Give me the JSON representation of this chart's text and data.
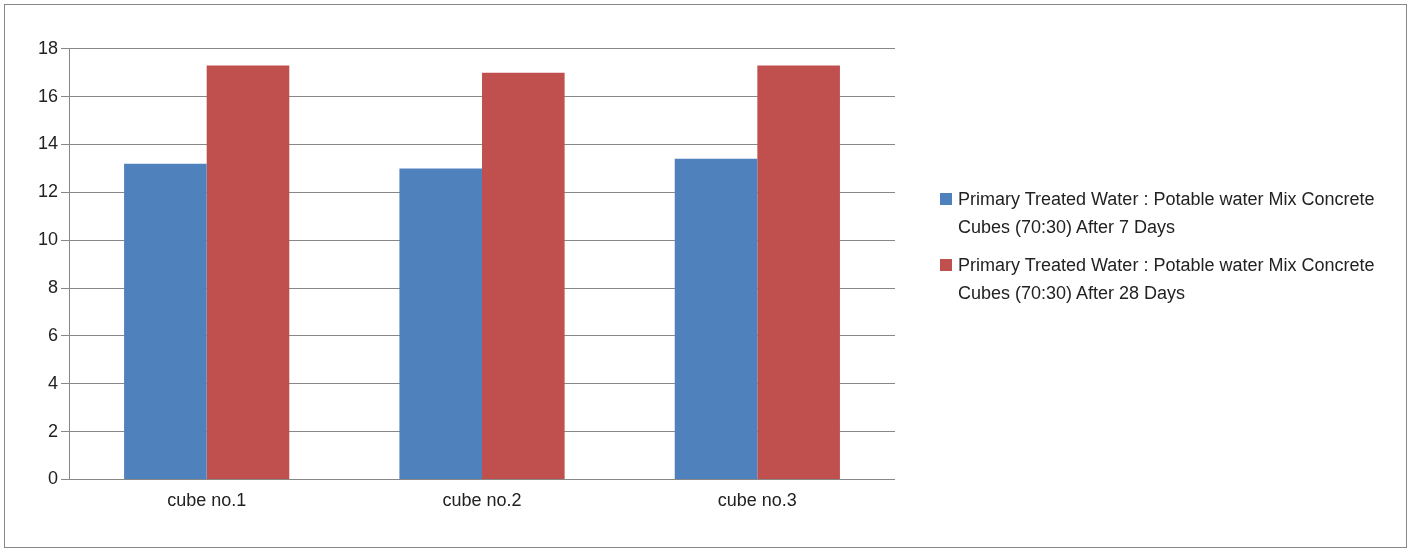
{
  "chart_data": {
    "type": "bar",
    "categories": [
      "cube no.1",
      "cube no.2",
      "cube no.3"
    ],
    "series": [
      {
        "name": "Primary Treated Water : Potable water Mix Concrete Cubes (70:30)  After 7 Days",
        "color": "#4f81bd",
        "values": [
          13.2,
          13.0,
          13.4
        ]
      },
      {
        "name": "Primary Treated Water : Potable water Mix Concrete Cubes (70:30)  After 28 Days",
        "color": "#c0504d",
        "values": [
          17.3,
          17.0,
          17.3
        ]
      }
    ],
    "ylim": [
      0,
      18
    ],
    "yticks": [
      0,
      2,
      4,
      6,
      8,
      10,
      12,
      14,
      16,
      18
    ],
    "grid": "y",
    "legend": "right"
  }
}
